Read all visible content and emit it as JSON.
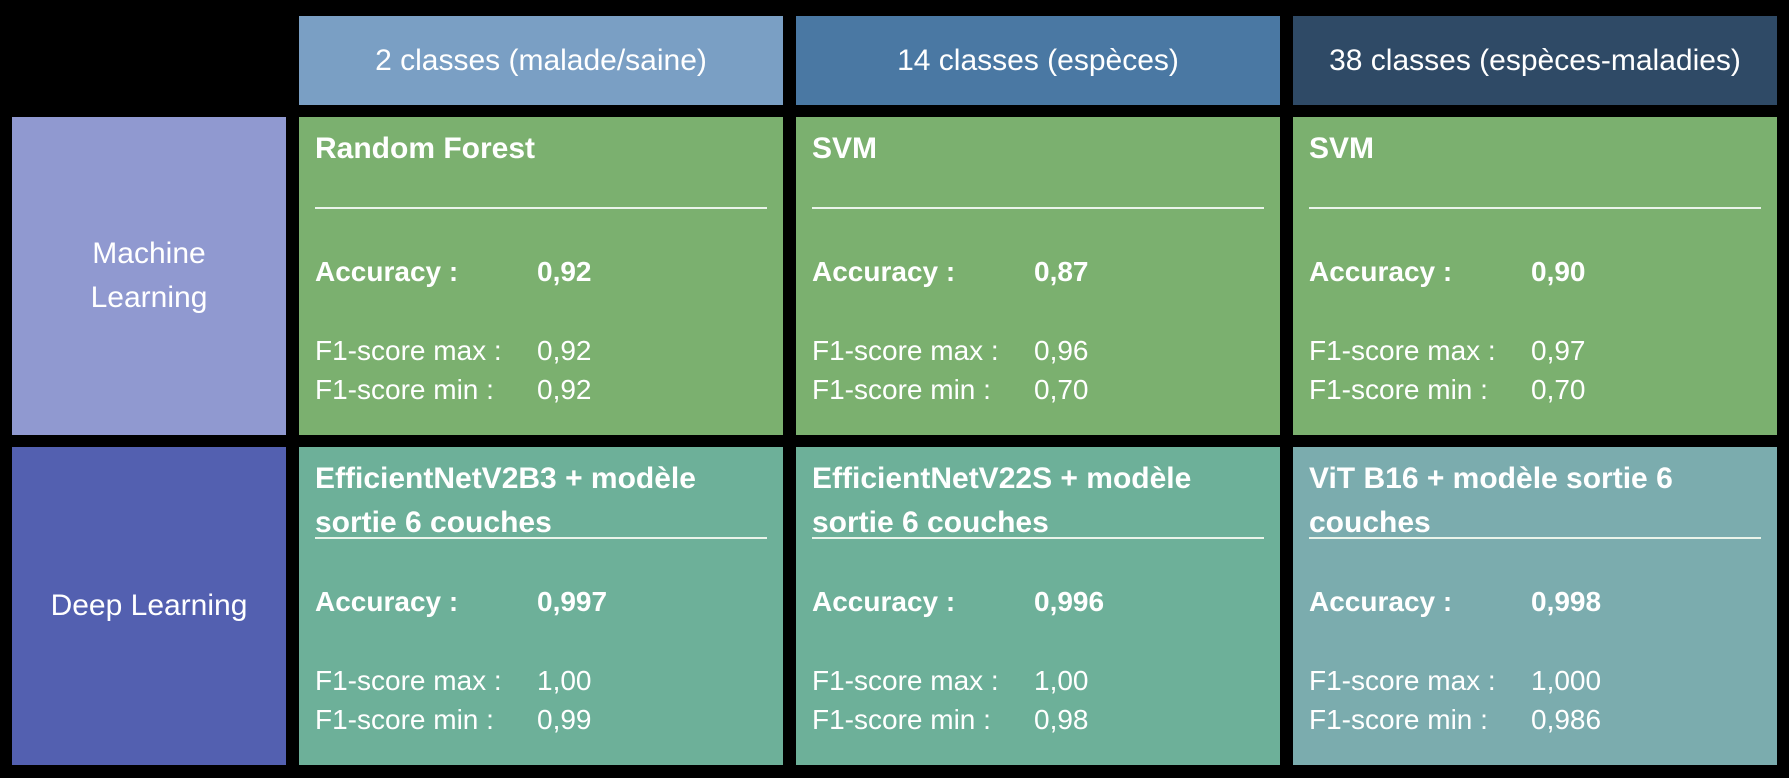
{
  "columns": [
    "2 classes (malade/saine)",
    "14 classes (espèces)",
    "38 classes (espèces-maladies)"
  ],
  "colors": {
    "header_2_classes": "#7a9fc4",
    "header_14_classes": "#4a78a3",
    "header_38_classes": "#2f4a66",
    "row_machine_learning": "#9099d0",
    "row_deep_learning": "#5360b0",
    "cell_machine_learning": "#7bb06f",
    "cell_deep_learning": "#6db099",
    "cell_deep_learning_38": "#7bacae"
  },
  "labels": {
    "accuracy": "Accuracy :",
    "f1_max": "F1-score max :",
    "f1_min": "F1-score min :"
  },
  "rows": [
    {
      "name": "Machine Learning",
      "cells": [
        {
          "model": "Random Forest",
          "accuracy": "0,92",
          "f1_max": "0,92",
          "f1_min": "0,92"
        },
        {
          "model": "SVM",
          "accuracy": "0,87",
          "f1_max": "0,96",
          "f1_min": "0,70"
        },
        {
          "model": "SVM",
          "accuracy": "0,90",
          "f1_max": "0,97",
          "f1_min": "0,70"
        }
      ]
    },
    {
      "name": "Deep Learning",
      "cells": [
        {
          "model": "EfficientNetV2B3 + modèle sortie 6 couches",
          "accuracy": "0,997",
          "f1_max": "1,00",
          "f1_min": "0,99"
        },
        {
          "model": "EfficientNetV22S + modèle sortie 6 couches",
          "accuracy": "0,996",
          "f1_max": "1,00",
          "f1_min": "0,98"
        },
        {
          "model": "ViT B16 + modèle sortie 6 couches",
          "accuracy": "0,998",
          "f1_max": "1,000",
          "f1_min": "0,986"
        }
      ]
    }
  ]
}
